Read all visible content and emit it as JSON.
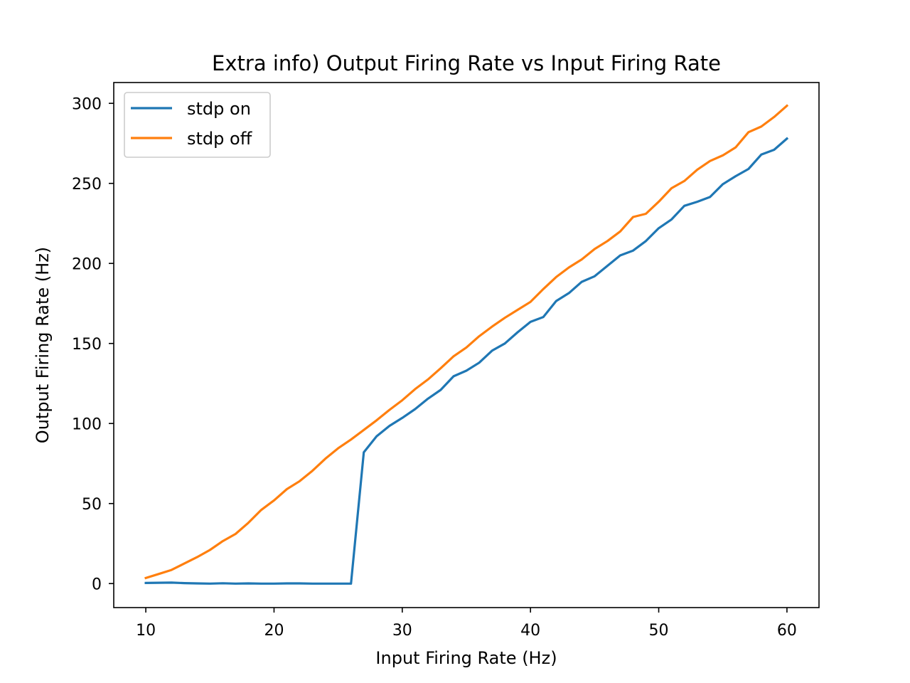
{
  "chart_data": {
    "type": "line",
    "title": "Extra info) Output Firing Rate vs Input Firing Rate",
    "xlabel": "Input Firing Rate (Hz)",
    "ylabel": "Output Firing Rate (Hz)",
    "xlim": [
      7.5,
      62.5
    ],
    "ylim": [
      -15,
      313
    ],
    "x_ticks": [
      10,
      20,
      30,
      40,
      50,
      60
    ],
    "y_ticks": [
      0,
      50,
      100,
      150,
      200,
      250,
      300
    ],
    "grid": false,
    "legend_position": "upper-left",
    "x": [
      10,
      11,
      12,
      13,
      14,
      15,
      16,
      17,
      18,
      19,
      20,
      21,
      22,
      23,
      24,
      25,
      26,
      27,
      28,
      29,
      30,
      31,
      32,
      33,
      34,
      35,
      36,
      37,
      38,
      39,
      40,
      41,
      42,
      43,
      44,
      45,
      46,
      47,
      48,
      49,
      50,
      51,
      52,
      53,
      54,
      55,
      56,
      57,
      58,
      59,
      60
    ],
    "series": [
      {
        "name": "stdp on",
        "color": "#1f77b4",
        "values": [
          0.4,
          0.5,
          0.6,
          0.3,
          0.1,
          0,
          0.2,
          0,
          0.1,
          0,
          0,
          0.1,
          0.1,
          0,
          0,
          0,
          0,
          82,
          92,
          98.5,
          103.5,
          109,
          115.5,
          121,
          129.5,
          133,
          138,
          145.5,
          150,
          157,
          163.5,
          166.5,
          176.5,
          181.5,
          188.5,
          192,
          198.5,
          205,
          208,
          214,
          222,
          227.5,
          236,
          238.5,
          241.5,
          249.5,
          254.5,
          259,
          268,
          271,
          278
        ]
      },
      {
        "name": "stdp off",
        "color": "#ff7f0e",
        "values": [
          3.5,
          6,
          8.5,
          12.5,
          16.5,
          21,
          26.5,
          31,
          38,
          46,
          52,
          59,
          64,
          70.5,
          78,
          84.5,
          90,
          96,
          102,
          108.5,
          114.5,
          121.5,
          127.5,
          134.5,
          142,
          147.5,
          154.5,
          160.5,
          166,
          171,
          176,
          184,
          191.5,
          197.5,
          202.5,
          209,
          214,
          220,
          229,
          231,
          238.5,
          247,
          251.5,
          258.5,
          264,
          267.5,
          272.5,
          282,
          285.5,
          291.5,
          298.5
        ]
      }
    ]
  }
}
